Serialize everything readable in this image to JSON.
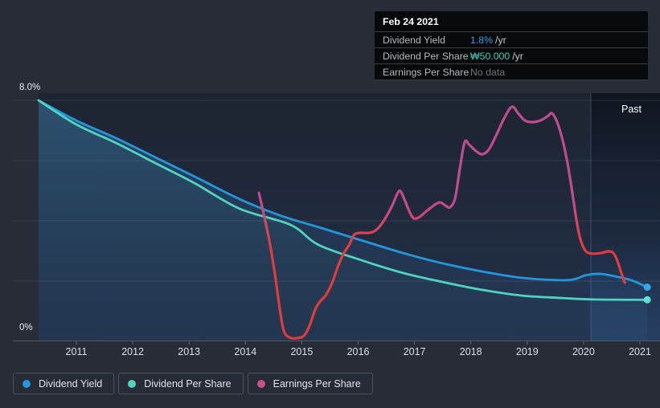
{
  "tooltip": {
    "date": "Feb 24 2021",
    "rows": [
      {
        "label": "Dividend Yield",
        "value": "1.8%",
        "suffix": "/yr",
        "value_color": "#2e9fe6"
      },
      {
        "label": "Dividend Per Share",
        "value": "₩50.000",
        "suffix": "/yr",
        "value_color": "#3fcbb6"
      },
      {
        "label": "Earnings Per Share",
        "value": "No data",
        "suffix": "",
        "value_color": "#6e747c"
      }
    ]
  },
  "chart": {
    "past_label": "Past",
    "y_axis": {
      "top_label": "8.0%",
      "bottom_label": "0%"
    },
    "x_axis": {
      "years": [
        2011,
        2012,
        2013,
        2014,
        2015,
        2016,
        2017,
        2018,
        2019,
        2020,
        2021
      ]
    }
  },
  "legend": [
    {
      "label": "Dividend Yield",
      "color": "#2496db"
    },
    {
      "label": "Dividend Per Share",
      "color": "#4fd4c0"
    },
    {
      "label": "Earnings Per Share",
      "color": "#c94f8e"
    }
  ],
  "chart_data": {
    "type": "line",
    "title": "Dividend history",
    "x_range": [
      2010.33,
      2021.35
    ],
    "ylim": [
      0,
      8
    ],
    "y_unit": "percent",
    "gridline_percents": [
      0,
      2,
      4,
      6,
      8
    ],
    "past_boundary_x": 2020.13,
    "legend_position": "bottom",
    "series": [
      {
        "name": "Dividend Yield",
        "color": "#2496db",
        "dot_color": "#34a9ec",
        "end_dot": true,
        "area_fill": true,
        "points": [
          [
            2010.33,
            8.0
          ],
          [
            2011.0,
            7.33
          ],
          [
            2011.7,
            6.75
          ],
          [
            2012.4,
            6.11
          ],
          [
            2013.1,
            5.47
          ],
          [
            2013.9,
            4.72
          ],
          [
            2014.6,
            4.19
          ],
          [
            2015.3,
            3.79
          ],
          [
            2016.1,
            3.33
          ],
          [
            2016.8,
            2.93
          ],
          [
            2017.5,
            2.59
          ],
          [
            2018.2,
            2.32
          ],
          [
            2018.9,
            2.11
          ],
          [
            2019.6,
            2.03
          ],
          [
            2019.85,
            2.07
          ],
          [
            2020.05,
            2.2
          ],
          [
            2020.3,
            2.24
          ],
          [
            2020.55,
            2.16
          ],
          [
            2020.85,
            2.03
          ],
          [
            2021.13,
            1.8
          ]
        ]
      },
      {
        "name": "Dividend Per Share",
        "color": "#4fd4c0",
        "dot_color": "#5ce2ce",
        "end_dot": true,
        "area_fill": true,
        "points": [
          [
            2010.33,
            8.0
          ],
          [
            2011.0,
            7.2
          ],
          [
            2011.7,
            6.59
          ],
          [
            2012.4,
            5.92
          ],
          [
            2013.1,
            5.25
          ],
          [
            2013.9,
            4.4
          ],
          [
            2014.8,
            3.87
          ],
          [
            2015.3,
            3.2
          ],
          [
            2016.1,
            2.67
          ],
          [
            2016.8,
            2.27
          ],
          [
            2017.5,
            1.97
          ],
          [
            2018.2,
            1.71
          ],
          [
            2018.9,
            1.52
          ],
          [
            2019.6,
            1.44
          ],
          [
            2020.2,
            1.39
          ],
          [
            2021.13,
            1.38
          ]
        ]
      },
      {
        "name": "Earnings Per Share",
        "color_high": "#c04b90",
        "color_low": "#e23b3b",
        "end_dot": false,
        "area_fill": false,
        "points": [
          [
            2014.24,
            4.93
          ],
          [
            2014.32,
            4.27
          ],
          [
            2014.42,
            3.39
          ],
          [
            2014.52,
            2.27
          ],
          [
            2014.61,
            1.07
          ],
          [
            2014.68,
            0.35
          ],
          [
            2014.78,
            0.13
          ],
          [
            2014.92,
            0.11
          ],
          [
            2015.04,
            0.19
          ],
          [
            2015.14,
            0.53
          ],
          [
            2015.24,
            1.07
          ],
          [
            2015.32,
            1.31
          ],
          [
            2015.44,
            1.57
          ],
          [
            2015.54,
            1.95
          ],
          [
            2015.64,
            2.48
          ],
          [
            2015.74,
            2.91
          ],
          [
            2015.84,
            3.2
          ],
          [
            2015.92,
            3.52
          ],
          [
            2016.02,
            3.6
          ],
          [
            2016.18,
            3.6
          ],
          [
            2016.28,
            3.65
          ],
          [
            2016.38,
            3.81
          ],
          [
            2016.49,
            4.11
          ],
          [
            2016.61,
            4.53
          ],
          [
            2016.69,
            4.88
          ],
          [
            2016.75,
            4.99
          ],
          [
            2016.83,
            4.67
          ],
          [
            2016.92,
            4.27
          ],
          [
            2016.99,
            4.08
          ],
          [
            2017.09,
            4.13
          ],
          [
            2017.23,
            4.35
          ],
          [
            2017.38,
            4.56
          ],
          [
            2017.46,
            4.61
          ],
          [
            2017.55,
            4.51
          ],
          [
            2017.63,
            4.45
          ],
          [
            2017.72,
            4.75
          ],
          [
            2017.8,
            5.68
          ],
          [
            2017.89,
            6.61
          ],
          [
            2017.97,
            6.53
          ],
          [
            2018.09,
            6.32
          ],
          [
            2018.2,
            6.21
          ],
          [
            2018.32,
            6.37
          ],
          [
            2018.46,
            6.88
          ],
          [
            2018.6,
            7.44
          ],
          [
            2018.73,
            7.79
          ],
          [
            2018.84,
            7.57
          ],
          [
            2018.96,
            7.33
          ],
          [
            2019.09,
            7.28
          ],
          [
            2019.23,
            7.33
          ],
          [
            2019.36,
            7.47
          ],
          [
            2019.44,
            7.57
          ],
          [
            2019.53,
            7.28
          ],
          [
            2019.63,
            6.67
          ],
          [
            2019.72,
            5.87
          ],
          [
            2019.79,
            5.07
          ],
          [
            2019.86,
            4.19
          ],
          [
            2019.92,
            3.57
          ],
          [
            2019.99,
            3.15
          ],
          [
            2020.06,
            2.96
          ],
          [
            2020.17,
            2.91
          ],
          [
            2020.31,
            2.93
          ],
          [
            2020.44,
            2.99
          ],
          [
            2020.53,
            2.93
          ],
          [
            2020.6,
            2.67
          ],
          [
            2020.67,
            2.27
          ],
          [
            2020.73,
            1.95
          ]
        ]
      }
    ]
  }
}
